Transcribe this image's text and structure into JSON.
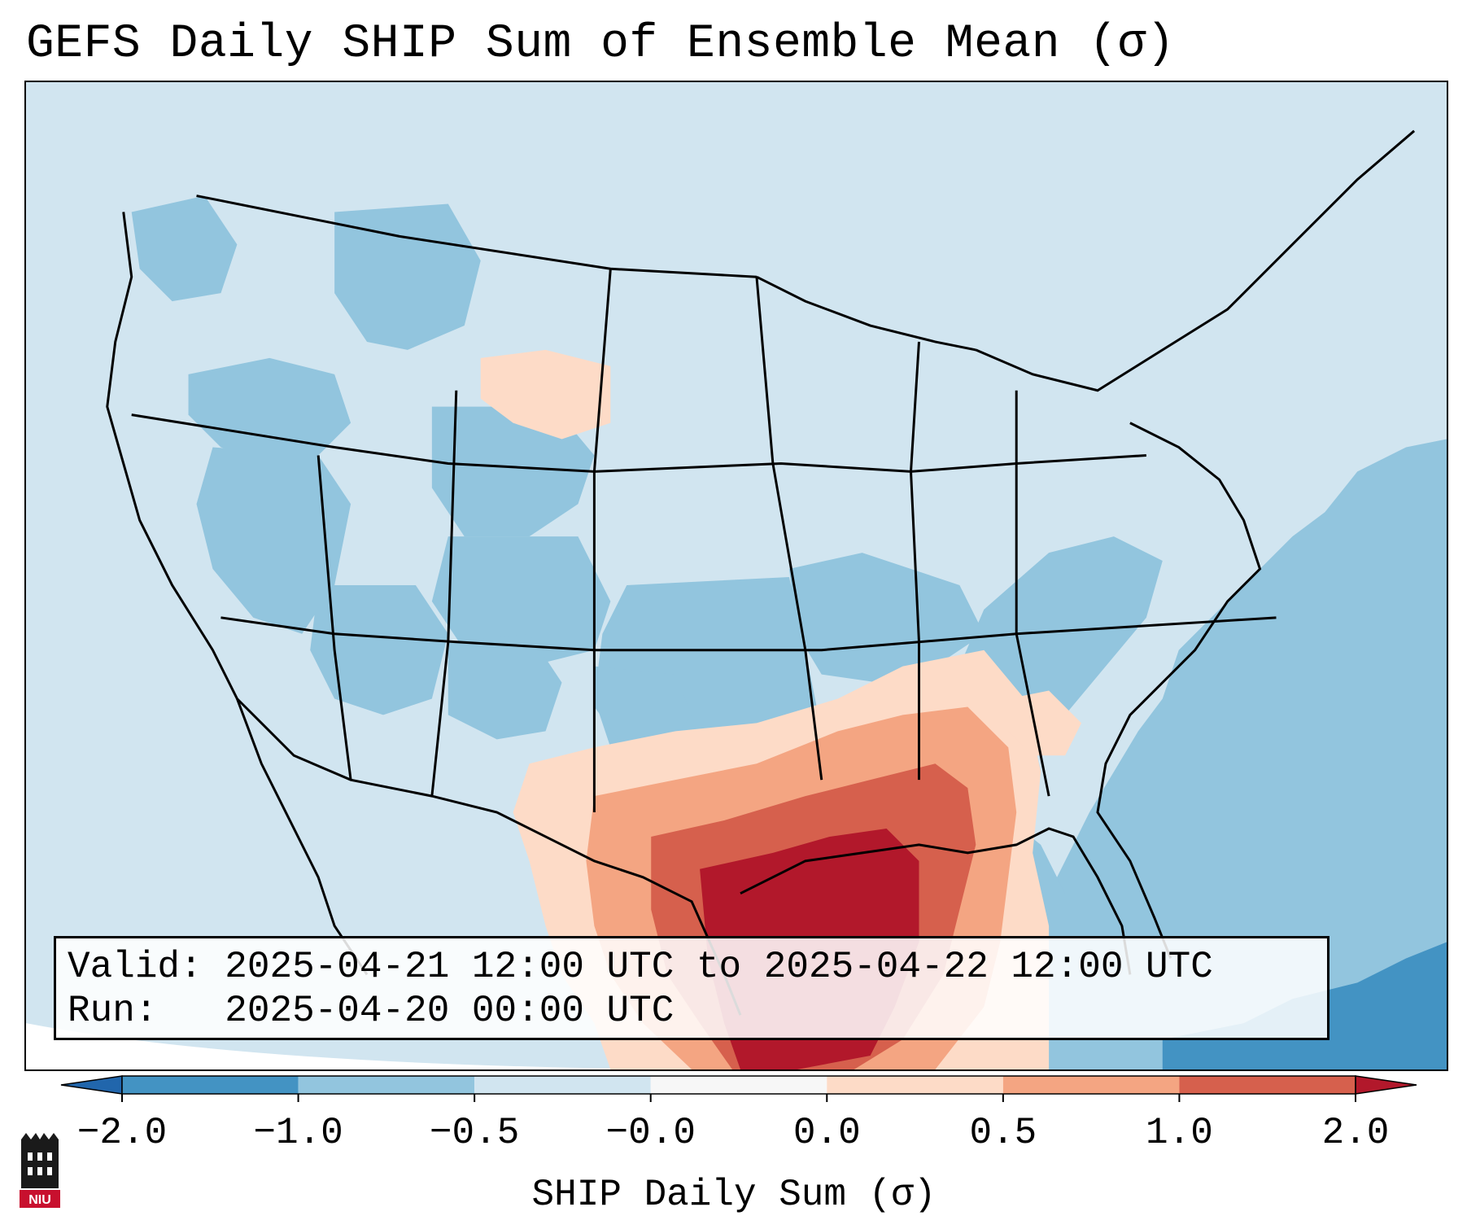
{
  "title": "GEFS Daily SHIP Sum of Ensemble Mean (σ)",
  "info": {
    "valid_label": "Valid:",
    "valid_value": "2025-04-21 12:00 UTC to 2025-04-22 12:00 UTC",
    "run_label": "Run:",
    "run_value": "2025-04-20 00:00 UTC"
  },
  "colorbar": {
    "label": "SHIP Daily Sum (σ)",
    "ticks": [
      "−2.0",
      "−1.0",
      "−0.5",
      "−0.0",
      "0.0",
      "0.5",
      "1.0",
      "2.0"
    ],
    "colors": [
      "#4393c3",
      "#92c5de",
      "#d1e5f0",
      "#f7f7f7",
      "#fddbc7",
      "#f4a582",
      "#d6604d"
    ],
    "under_color": "#2166ac",
    "over_color": "#b2182b"
  },
  "logo": {
    "text": "NIU",
    "color": "#c8102e"
  }
}
